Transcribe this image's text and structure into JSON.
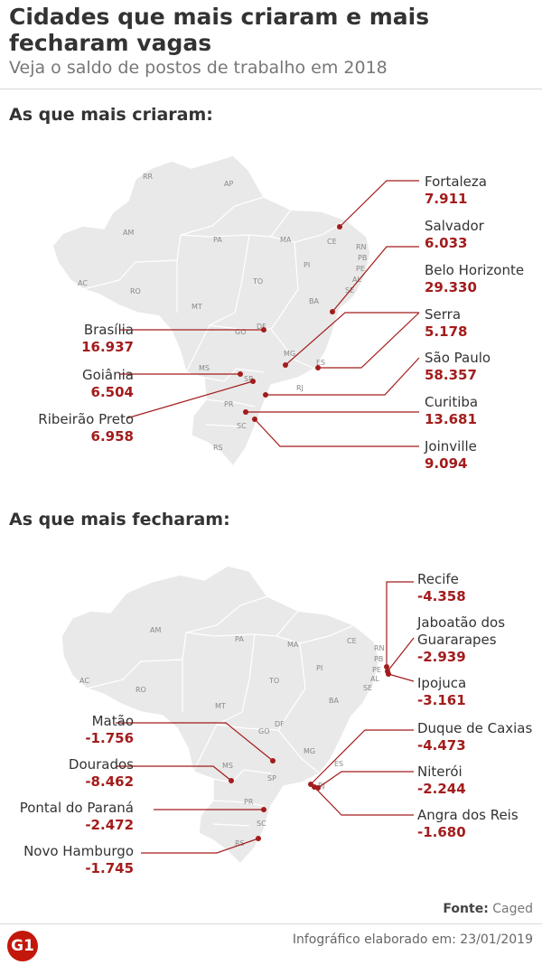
{
  "header": {
    "title": "Cidades que mais criaram e mais fecharam vagas",
    "subtitle": "Veja o saldo de postos de trabalho em 2018"
  },
  "colors": {
    "accent": "#a31c1c",
    "map_fill": "#e9e9e9",
    "map_border": "#ffffff"
  },
  "created": {
    "heading": "As que mais criaram:",
    "states": [
      "RR",
      "AP",
      "AM",
      "PA",
      "MA",
      "CE",
      "RN",
      "PB",
      "PE",
      "AL",
      "SE",
      "PI",
      "AC",
      "RO",
      "TO",
      "BA",
      "MT",
      "GO",
      "DF",
      "MG",
      "ES",
      "MS",
      "SP",
      "RJ",
      "PR",
      "SC",
      "RS"
    ],
    "cities": [
      {
        "name": "Fortaleza",
        "value": "7.911"
      },
      {
        "name": "Salvador",
        "value": "6.033"
      },
      {
        "name": "Belo Horizonte",
        "value": "29.330"
      },
      {
        "name": "Serra",
        "value": "5.178"
      },
      {
        "name": "São Paulo",
        "value": "58.357"
      },
      {
        "name": "Curitiba",
        "value": "13.681"
      },
      {
        "name": "Joinville",
        "value": "9.094"
      },
      {
        "name": "Brasília",
        "value": "16.937"
      },
      {
        "name": "Goiânia",
        "value": "6.504"
      },
      {
        "name": "Ribeirão Preto",
        "value": "6.958"
      }
    ]
  },
  "closed": {
    "heading": "As que mais fecharam:",
    "states": [
      "AM",
      "PA",
      "MA",
      "CE",
      "RN",
      "PB",
      "PE",
      "AL",
      "SE",
      "PI",
      "AC",
      "RO",
      "TO",
      "BA",
      "MT",
      "GO",
      "DF",
      "MG",
      "ES",
      "MS",
      "SP",
      "RJ",
      "PR",
      "SC",
      "RS"
    ],
    "cities": [
      {
        "name": "Recife",
        "value": "-4.358"
      },
      {
        "name": "Jaboatão dos Guararapes",
        "value": "-2.939"
      },
      {
        "name": "Ipojuca",
        "value": "-3.161"
      },
      {
        "name": "Duque de Caxias",
        "value": "-4.473"
      },
      {
        "name": "Niterói",
        "value": "-2.244"
      },
      {
        "name": "Angra dos Reis",
        "value": "-1.680"
      },
      {
        "name": "Matão",
        "value": "-1.756"
      },
      {
        "name": "Dourados",
        "value": "-8.462"
      },
      {
        "name": "Pontal do Paraná",
        "value": "-2.472"
      },
      {
        "name": "Novo Hamburgo",
        "value": "-1.745"
      }
    ]
  },
  "footer": {
    "source_label": "Fonte:",
    "source": "Caged",
    "logo": "G1",
    "credit": "Infográfico elaborado em: 23/01/2019"
  }
}
